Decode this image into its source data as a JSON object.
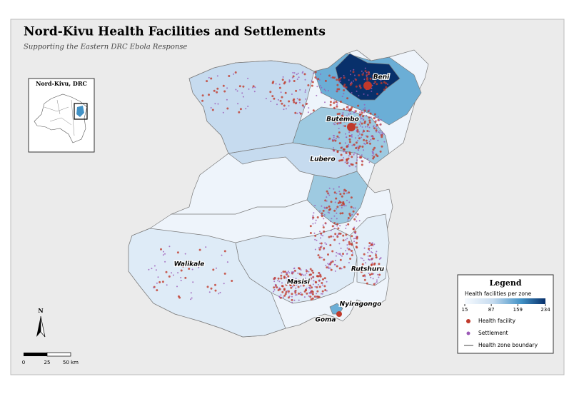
{
  "title": "Nord-Kivu Health Facilities and Settlements",
  "subtitle": "Supporting the Eastern DRC Ebola Response",
  "inset": {
    "title": "Nord-Kivu, DRC"
  },
  "places": [
    "Beni",
    "Butembo",
    "Lubero",
    "Walikale",
    "Masisi",
    "Rutshuru",
    "Nyiragongo",
    "Goma"
  ],
  "legend": {
    "title": "Legend",
    "colorbar": {
      "label": "Health facilities per zone",
      "range": [
        15,
        234
      ],
      "ticks": [
        15,
        87,
        159,
        234
      ]
    },
    "items": [
      "Health facility",
      "Settlement",
      "Health zone boundary"
    ]
  },
  "north": "N",
  "scale_bar": [
    "0",
    "25",
    "50 km"
  ]
}
